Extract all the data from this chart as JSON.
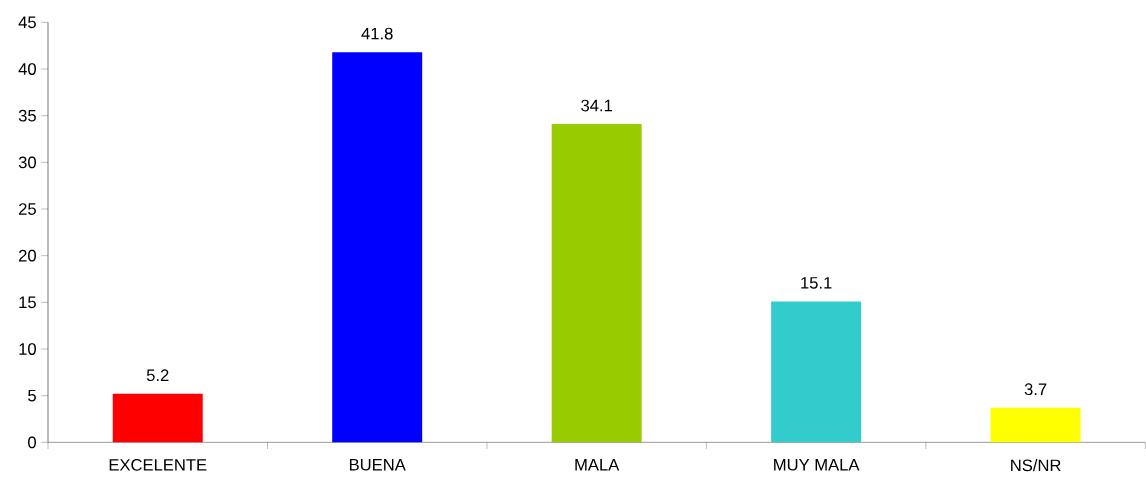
{
  "chart_data": {
    "type": "bar",
    "categories": [
      "EXCELENTE",
      "BUENA",
      "MALA",
      "MUY MALA",
      "NS/NR"
    ],
    "values": [
      5.2,
      41.8,
      34.1,
      15.1,
      3.7
    ],
    "colors": [
      "#ff0000",
      "#0000ff",
      "#99cc00",
      "#33cccc",
      "#ffff00"
    ],
    "ylim": [
      0,
      45
    ],
    "yticks": [
      0,
      5,
      10,
      15,
      20,
      25,
      30,
      35,
      40,
      45
    ],
    "data_labels": true,
    "grid": false
  }
}
